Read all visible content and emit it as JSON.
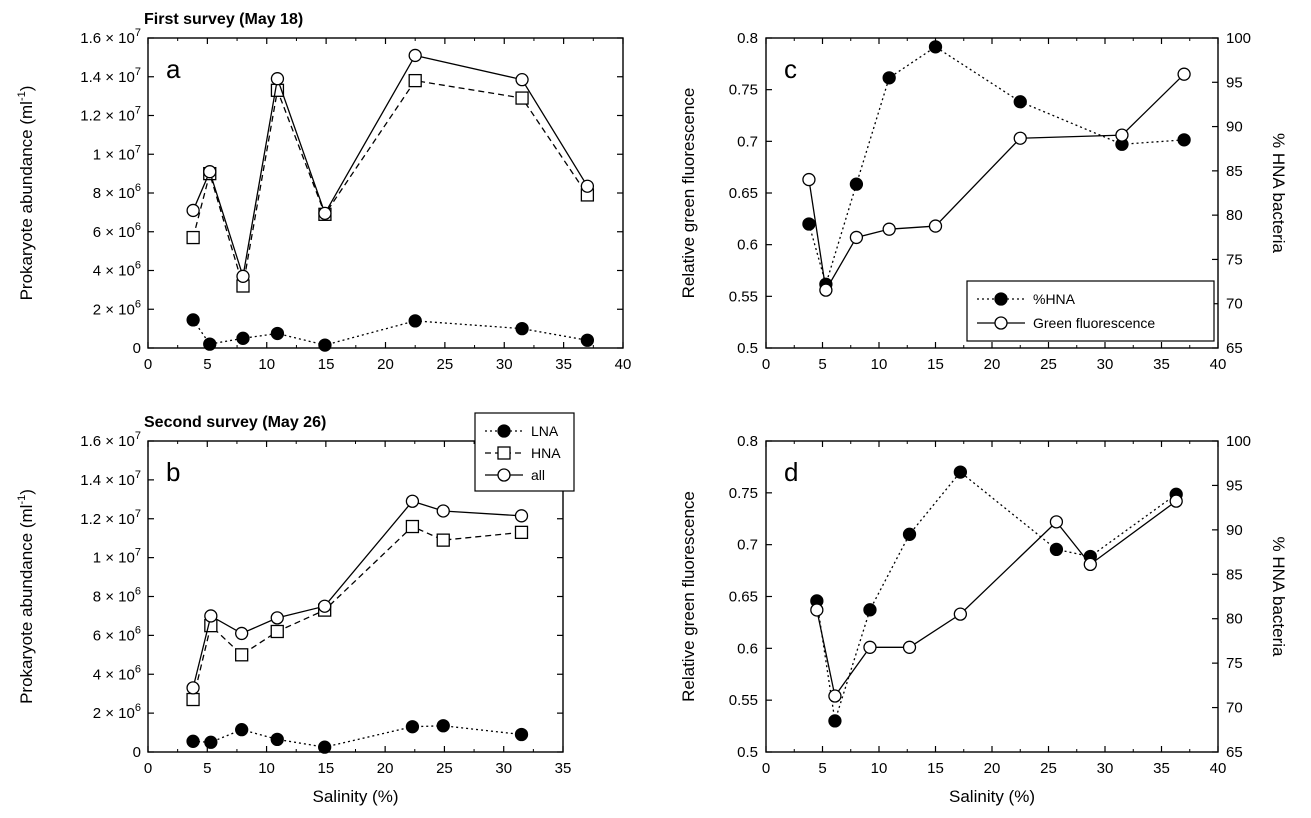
{
  "chart_data": [
    {
      "type": "line",
      "panel_letter": "a",
      "title": "First survey (May 18)",
      "xlabel": "",
      "ylabel": "Prokaryote abundance (ml",
      "ylabel_sup": "-1",
      "ylabel_close": ")",
      "xlim": [
        0,
        40
      ],
      "ylim": [
        0,
        16000000
      ],
      "x_ticks": [
        "0",
        "5",
        "10",
        "15",
        "20",
        "25",
        "30",
        "35",
        "40"
      ],
      "y_ticks": [
        {
          "value": 0,
          "label": "0"
        },
        {
          "value": 2000000,
          "label": "2 × 10",
          "exp": "6"
        },
        {
          "value": 4000000,
          "label": "4 × 10",
          "exp": "6"
        },
        {
          "value": 6000000,
          "label": "6 × 10",
          "exp": "6"
        },
        {
          "value": 8000000,
          "label": "8 × 10",
          "exp": "6"
        },
        {
          "value": 10000000,
          "label": "1 × 10",
          "exp": "7"
        },
        {
          "value": 12000000,
          "label": "1.2 × 10",
          "exp": "7"
        },
        {
          "value": 14000000,
          "label": "1.4 × 10",
          "exp": "7"
        },
        {
          "value": 16000000,
          "label": "1.6 × 10",
          "exp": "7"
        }
      ],
      "grid": false,
      "series": [
        {
          "name": "LNA",
          "marker": "filled-circle",
          "line": "dotted",
          "x": [
            3.8,
            5.2,
            8,
            10.9,
            14.9,
            22.5,
            31.5,
            37
          ],
          "y": [
            1450000,
            200000,
            500000,
            750000,
            150000,
            1400000,
            1000000,
            400000
          ]
        },
        {
          "name": "HNA",
          "marker": "open-square",
          "line": "dashed",
          "x": [
            3.8,
            5.2,
            8,
            10.9,
            14.9,
            22.5,
            31.5,
            37
          ],
          "y": [
            5700000,
            9000000,
            3200000,
            13300000,
            6900000,
            13800000,
            12900000,
            7900000
          ]
        },
        {
          "name": "all",
          "marker": "open-circle",
          "line": "solid",
          "x": [
            3.8,
            5.2,
            8,
            10.9,
            14.9,
            22.5,
            31.5,
            37
          ],
          "y": [
            7100000,
            9100000,
            3700000,
            13900000,
            6950000,
            15100000,
            13850000,
            8350000
          ]
        }
      ]
    },
    {
      "type": "line",
      "panel_letter": "b",
      "title": "Second survey (May 26)",
      "xlabel": "Salinity (%)",
      "ylabel": "Prokaryote abundance (ml",
      "ylabel_sup": "-1",
      "ylabel_close": ")",
      "xlim": [
        0,
        35
      ],
      "ylim": [
        0,
        16000000
      ],
      "x_ticks": [
        "0",
        "5",
        "10",
        "15",
        "20",
        "25",
        "30",
        "35"
      ],
      "y_ticks": [
        {
          "value": 0,
          "label": "0"
        },
        {
          "value": 2000000,
          "label": "2 × 10",
          "exp": "6"
        },
        {
          "value": 4000000,
          "label": "4 × 10",
          "exp": "6"
        },
        {
          "value": 6000000,
          "label": "6 × 10",
          "exp": "6"
        },
        {
          "value": 8000000,
          "label": "8 × 10",
          "exp": "6"
        },
        {
          "value": 10000000,
          "label": "1 × 10",
          "exp": "7"
        },
        {
          "value": 12000000,
          "label": "1.2 × 10",
          "exp": "7"
        },
        {
          "value": 14000000,
          "label": "1.4 × 10",
          "exp": "7"
        },
        {
          "value": 16000000,
          "label": "1.6 × 10",
          "exp": "7"
        }
      ],
      "grid": false,
      "legend": {
        "placement": "top-right",
        "entries": [
          "LNA",
          "HNA",
          "all"
        ]
      },
      "series": [
        {
          "name": "LNA",
          "marker": "filled-circle",
          "line": "dotted",
          "x": [
            3.8,
            5.3,
            7.9,
            10.9,
            14.9,
            22.3,
            24.9,
            31.5
          ],
          "y": [
            550000,
            500000,
            1150000,
            650000,
            250000,
            1300000,
            1350000,
            900000
          ]
        },
        {
          "name": "HNA",
          "marker": "open-square",
          "line": "dashed",
          "x": [
            3.8,
            5.3,
            7.9,
            10.9,
            14.9,
            22.3,
            24.9,
            31.5
          ],
          "y": [
            2700000,
            6500000,
            5000000,
            6200000,
            7300000,
            11600000,
            10900000,
            11300000
          ]
        },
        {
          "name": "all",
          "marker": "open-circle",
          "line": "solid",
          "x": [
            3.8,
            5.3,
            7.9,
            10.9,
            14.9,
            22.3,
            24.9,
            31.5
          ],
          "y": [
            3300000,
            7000000,
            6100000,
            6900000,
            7500000,
            12900000,
            12400000,
            12150000
          ]
        }
      ]
    },
    {
      "type": "line",
      "panel_letter": "c",
      "title": "",
      "xlabel": "",
      "ylabel": "Relative green fluorescence",
      "y2label": "% HNA bacteria",
      "xlim": [
        0,
        40
      ],
      "ylim": [
        0.5,
        0.8
      ],
      "y2lim": [
        65,
        100
      ],
      "x_ticks": [
        "0",
        "5",
        "10",
        "15",
        "20",
        "25",
        "30",
        "35",
        "40"
      ],
      "y_ticks": [
        "0.5",
        "0.55",
        "0.6",
        "0.65",
        "0.7",
        "0.75",
        "0.8"
      ],
      "y2_ticks": [
        "65",
        "70",
        "75",
        "80",
        "85",
        "90",
        "95",
        "100"
      ],
      "grid": false,
      "legend": {
        "placement": "bottom-right",
        "entries": [
          "%HNA",
          "Green fluorescence"
        ]
      },
      "series": [
        {
          "name": "%HNA",
          "marker": "filled-circle",
          "line": "dotted",
          "axis": "right",
          "x": [
            3.8,
            5.3,
            8,
            10.9,
            15,
            22.5,
            31.5,
            37
          ],
          "y": [
            79,
            72.2,
            83.5,
            95.5,
            99,
            92.8,
            88,
            88.5
          ]
        },
        {
          "name": "Green fluorescence",
          "marker": "open-circle",
          "line": "solid",
          "axis": "left",
          "x": [
            3.8,
            5.3,
            8,
            10.9,
            15,
            22.5,
            31.5,
            37
          ],
          "y": [
            0.663,
            0.556,
            0.607,
            0.615,
            0.618,
            0.703,
            0.706,
            0.765
          ]
        }
      ]
    },
    {
      "type": "line",
      "panel_letter": "d",
      "title": "",
      "xlabel": "Salinity (%)",
      "ylabel": "Relative green fluorescence",
      "y2label": "% HNA bacteria",
      "xlim": [
        0,
        40
      ],
      "ylim": [
        0.5,
        0.8
      ],
      "y2lim": [
        65,
        100
      ],
      "x_ticks": [
        "0",
        "5",
        "10",
        "15",
        "20",
        "25",
        "30",
        "35",
        "40"
      ],
      "y_ticks": [
        "0.5",
        "0.55",
        "0.6",
        "0.65",
        "0.7",
        "0.75",
        "0.8"
      ],
      "y2_ticks": [
        "65",
        "70",
        "75",
        "80",
        "85",
        "90",
        "95",
        "100"
      ],
      "grid": false,
      "series": [
        {
          "name": "%HNA",
          "marker": "filled-circle",
          "line": "dotted",
          "axis": "right",
          "x": [
            4.5,
            6.1,
            9.2,
            12.7,
            17.2,
            25.7,
            28.7,
            36.3
          ],
          "y": [
            82,
            68.5,
            81,
            89.5,
            96.5,
            87.8,
            87,
            94
          ]
        },
        {
          "name": "Green fluorescence",
          "marker": "open-circle",
          "line": "solid",
          "axis": "left",
          "x": [
            4.5,
            6.1,
            9.2,
            12.7,
            17.2,
            25.7,
            28.7,
            36.3
          ],
          "y": [
            0.637,
            0.554,
            0.601,
            0.601,
            0.633,
            0.722,
            0.681,
            0.742
          ]
        }
      ]
    }
  ]
}
